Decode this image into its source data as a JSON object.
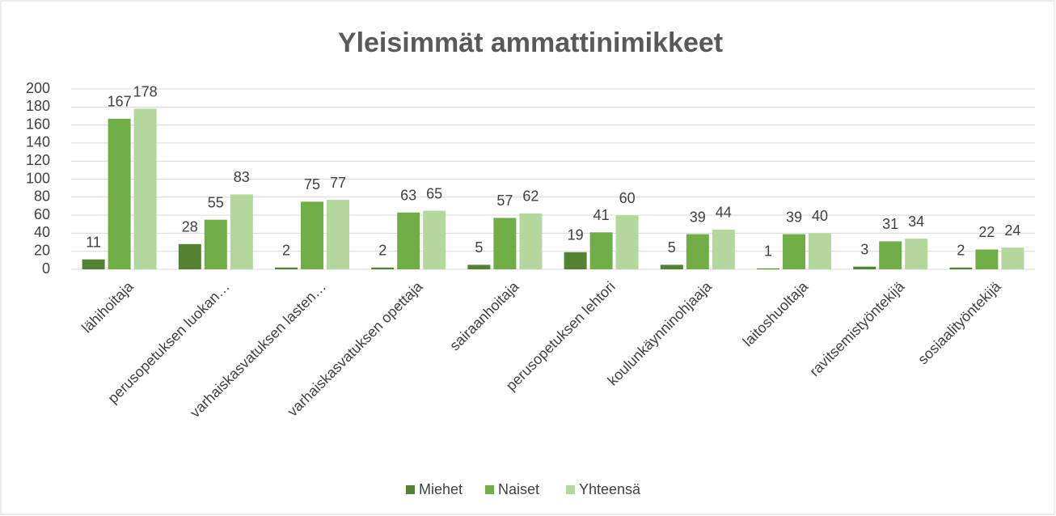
{
  "chart_data": {
    "type": "bar",
    "title": "Yleisimmät ammattinimikkeet",
    "categories": [
      "lähihoitaja",
      "perusopetuksen luokan…",
      "varhaiskasvatuksen lasten…",
      "varhaiskasvatuksen opettaja",
      "sairaanhoitaja",
      "perusopetuksen lehtori",
      "koulunkäynninohjaaja",
      "laitoshuoltaja",
      "ravitsemistyöntekijä",
      "sosiaalityöntekijä"
    ],
    "series": [
      {
        "name": "Miehet",
        "color": "#548235",
        "values": [
          11,
          28,
          2,
          2,
          5,
          19,
          5,
          1,
          3,
          2
        ]
      },
      {
        "name": "Naiset",
        "color": "#70ad47",
        "values": [
          167,
          55,
          75,
          63,
          57,
          41,
          39,
          39,
          31,
          22
        ]
      },
      {
        "name": "Yhteensä",
        "color": "#b4d79e",
        "values": [
          178,
          83,
          77,
          65,
          62,
          60,
          44,
          40,
          34,
          24
        ]
      }
    ],
    "ylim": [
      0,
      200
    ],
    "yticks": [
      0,
      20,
      40,
      60,
      80,
      100,
      120,
      140,
      160,
      180,
      200
    ],
    "grid": true,
    "legend": "bottom"
  }
}
